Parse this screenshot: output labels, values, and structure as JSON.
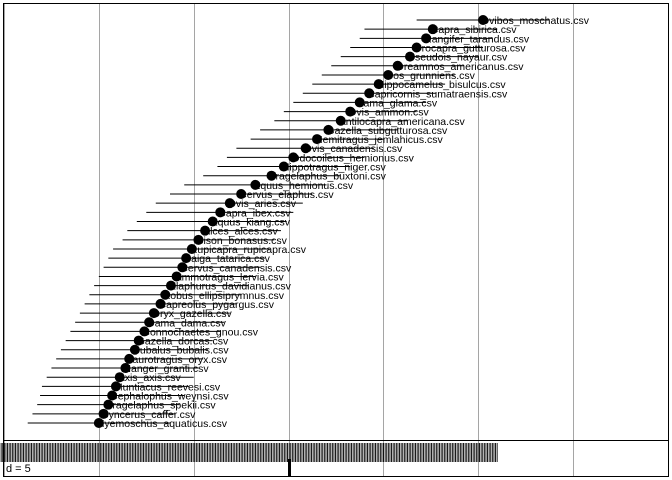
{
  "chart_data": {
    "type": "scatter",
    "panel_label": "d = 5",
    "xlim": [
      -3.0,
      4.0
    ],
    "grid": true,
    "points": [
      {
        "label": "Ovibos_moschatus.csv",
        "x": 2.05,
        "lo": 1.35,
        "hi": 2.75
      },
      {
        "label": "Capra_sibirica.csv",
        "x": 1.52,
        "lo": 0.8,
        "hi": 2.2
      },
      {
        "label": "Rangifer_tarandus.csv",
        "x": 1.45,
        "lo": 0.75,
        "hi": 2.15
      },
      {
        "label": "Procapra_gutturosa.csv",
        "x": 1.35,
        "lo": 0.65,
        "hi": 2.05
      },
      {
        "label": "Pseudois_nayaur.csv",
        "x": 1.28,
        "lo": 0.55,
        "hi": 2.0
      },
      {
        "label": "Oreamnos_americanus.csv",
        "x": 1.15,
        "lo": 0.45,
        "hi": 1.85
      },
      {
        "label": "Bos_grunniens.csv",
        "x": 1.05,
        "lo": 0.35,
        "hi": 1.75
      },
      {
        "label": "Hippocamelus_bisulcus.csv",
        "x": 0.95,
        "lo": 0.25,
        "hi": 1.65
      },
      {
        "label": "Capricornis_sumatraensis.csv",
        "x": 0.85,
        "lo": 0.15,
        "hi": 1.55
      },
      {
        "label": "Lama_glama.csv",
        "x": 0.75,
        "lo": 0.05,
        "hi": 1.45
      },
      {
        "label": "Ovis_ammon.csv",
        "x": 0.65,
        "lo": -0.05,
        "hi": 1.35
      },
      {
        "label": "Antilocapra_americana.csv",
        "x": 0.55,
        "lo": -0.15,
        "hi": 1.25
      },
      {
        "label": "Gazella_subgutturosa.csv",
        "x": 0.42,
        "lo": -0.3,
        "hi": 1.15
      },
      {
        "label": "Hemitragus_jemlahicus.csv",
        "x": 0.3,
        "lo": -0.4,
        "hi": 1.0
      },
      {
        "label": "Ovis_canadensis.csv",
        "x": 0.18,
        "lo": -0.55,
        "hi": 0.9
      },
      {
        "label": "Odocoileus_hemionus.csv",
        "x": 0.05,
        "lo": -0.65,
        "hi": 0.8
      },
      {
        "label": "Hippotragus_niger.csv",
        "x": -0.05,
        "lo": -0.75,
        "hi": 0.65
      },
      {
        "label": "Tragelaphus_buxtoni.csv",
        "x": -0.18,
        "lo": -0.9,
        "hi": 0.55
      },
      {
        "label": "Equus_hemionus.csv",
        "x": -0.35,
        "lo": -1.1,
        "hi": 0.4
      },
      {
        "label": "Cervus_elaphus.csv",
        "x": -0.5,
        "lo": -1.25,
        "hi": 0.25
      },
      {
        "label": "Ovis_aries.csv",
        "x": -0.62,
        "lo": -1.4,
        "hi": 0.15
      },
      {
        "label": "Capra_ibex.csv",
        "x": -0.72,
        "lo": -1.5,
        "hi": 0.05
      },
      {
        "label": "Equus_kiang.csv",
        "x": -0.8,
        "lo": -1.6,
        "hi": -0.02
      },
      {
        "label": "Alces_alces.csv",
        "x": -0.88,
        "lo": -1.7,
        "hi": -0.08
      },
      {
        "label": "Bison_bonasus.csv",
        "x": -0.95,
        "lo": -1.75,
        "hi": -0.15
      },
      {
        "label": "Rupicapra_rupicapra.csv",
        "x": -1.02,
        "lo": -1.85,
        "hi": -0.2
      },
      {
        "label": "Saiga_tatarica.csv",
        "x": -1.08,
        "lo": -1.9,
        "hi": -0.25
      },
      {
        "label": "Cervus_canadensis.csv",
        "x": -1.12,
        "lo": -1.95,
        "hi": -0.3
      },
      {
        "label": "Ammotragus_lervia.csv",
        "x": -1.18,
        "lo": -2.0,
        "hi": -0.35
      },
      {
        "label": "Elaphurus_davidianus.csv",
        "x": -1.24,
        "lo": -2.05,
        "hi": -0.42
      },
      {
        "label": "Kobus_ellipsiprymnus.csv",
        "x": -1.3,
        "lo": -2.1,
        "hi": -0.5
      },
      {
        "label": "Capreolus_pygargus.csv",
        "x": -1.35,
        "lo": -2.15,
        "hi": -0.55
      },
      {
        "label": "Oryx_gazella.csv",
        "x": -1.42,
        "lo": -2.2,
        "hi": -0.62
      },
      {
        "label": "Dama_dama.csv",
        "x": -1.47,
        "lo": -2.25,
        "hi": -0.68
      },
      {
        "label": "Connochaetes_gnou.csv",
        "x": -1.52,
        "lo": -2.3,
        "hi": -0.72
      },
      {
        "label": "Gazella_dorcas.csv",
        "x": -1.58,
        "lo": -2.35,
        "hi": -0.8
      },
      {
        "label": "Bubalus_bubalis.csv",
        "x": -1.62,
        "lo": -2.4,
        "hi": -0.85
      },
      {
        "label": "Taurotragus_oryx.csv",
        "x": -1.68,
        "lo": -2.45,
        "hi": -0.9
      },
      {
        "label": "Nanger_granti.csv",
        "x": -1.72,
        "lo": -2.5,
        "hi": -0.95
      },
      {
        "label": "Axis_axis.csv",
        "x": -1.78,
        "lo": -2.55,
        "hi": -1.0
      },
      {
        "label": "Muntiacus_reevesi.csv",
        "x": -1.82,
        "lo": -2.6,
        "hi": -1.05
      },
      {
        "label": "Cephalophus_weynsi.csv",
        "x": -1.86,
        "lo": -2.62,
        "hi": -1.1
      },
      {
        "label": "Tragelaphus_spekii.csv",
        "x": -1.9,
        "lo": -2.65,
        "hi": -1.15
      },
      {
        "label": "Syncerus_caffer.csv",
        "x": -1.95,
        "lo": -2.7,
        "hi": -1.2
      },
      {
        "label": "Hyemoschus_aquaticus.csv",
        "x": -2.0,
        "lo": -2.75,
        "hi": -1.25
      }
    ],
    "rug_range": [
      -3.3,
      2.2
    ],
    "rug_mean": 0.0
  }
}
